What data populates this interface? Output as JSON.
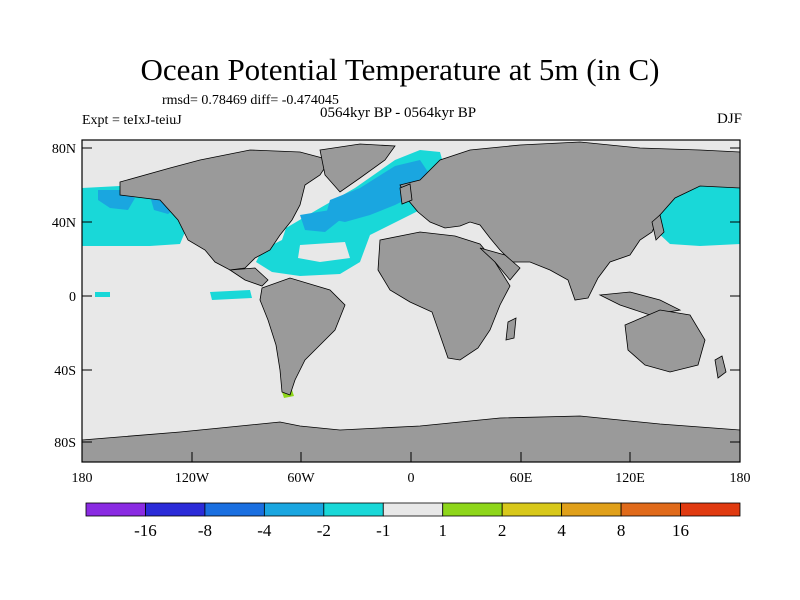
{
  "title": "Ocean Potential Temperature at 5m (in C)",
  "stats": "rmsd= 0.78469 diff= -0.474045",
  "experiment": "Expt = teIxJ-teiuJ",
  "period": "0564kyr BP - 0564kyr BP",
  "season": "DJF",
  "lon_ticks": [
    "180",
    "120W",
    "60W",
    "0",
    "60E",
    "120E",
    "180"
  ],
  "lat_ticks": [
    "80N",
    "40N",
    "0",
    "40S",
    "80S"
  ],
  "colorbar": {
    "labels": [
      "-16",
      "-8",
      "-4",
      "-2",
      "-1",
      "1",
      "2",
      "4",
      "8",
      "16"
    ],
    "colors": [
      "#8a2be2",
      "#2b2bd8",
      "#1a6fe0",
      "#1aa6e0",
      "#19d8d8",
      "#e8e8e8",
      "#8ed61a",
      "#d8c81a",
      "#e0a01a",
      "#e06a1a",
      "#e03a10"
    ]
  },
  "colors": {
    "ocean": "#e8e8e8",
    "land": "#9a9a9a",
    "cool": "#19d8d8",
    "cooler": "#1aa6e0",
    "warm": "#8ed61a"
  }
}
